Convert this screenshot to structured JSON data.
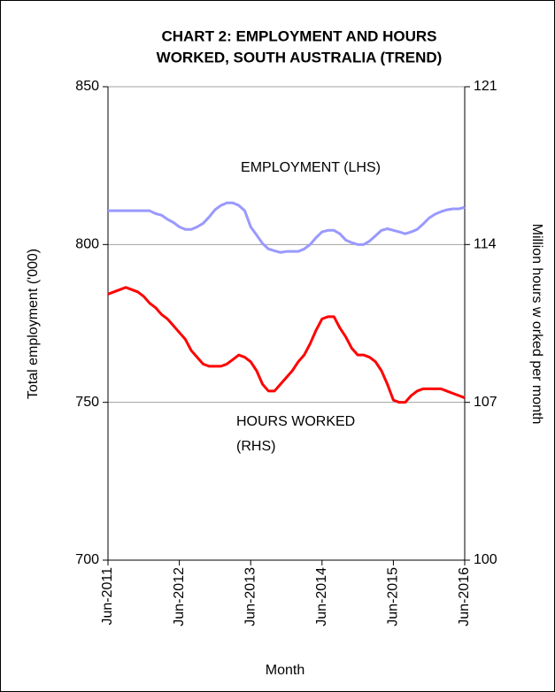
{
  "chart_data": {
    "type": "line",
    "title": [
      "CHART 2: EMPLOYMENT  AND HOURS",
      "WORKED, SOUTH AUSTRALIA (TREND)"
    ],
    "x_label": "Month",
    "y_label": "Total employment ('000)",
    "y2_label": "Million  hours w orked per month",
    "annotations": [
      "EMPLOYMENT  (LHS)",
      "HOURS WORKED",
      "(RHS)"
    ],
    "categories": [
      "Jun-2011",
      null,
      null,
      null,
      null,
      null,
      null,
      null,
      null,
      null,
      null,
      null,
      "Jun-2012",
      null,
      null,
      null,
      null,
      null,
      null,
      null,
      null,
      null,
      null,
      null,
      "Jun-2013",
      null,
      null,
      null,
      null,
      null,
      null,
      null,
      null,
      null,
      null,
      null,
      "Jun-2014",
      null,
      null,
      null,
      null,
      null,
      null,
      null,
      null,
      null,
      null,
      null,
      "Jun-2015",
      null,
      null,
      null,
      null,
      null,
      null,
      null,
      null,
      null,
      null,
      null,
      "Jun-2016"
    ],
    "series": [
      {
        "name": "EMPLOYMENT (LHS)",
        "color": "#9999ff",
        "axis": "y",
        "values": [
          810.7,
          810.7,
          810.7,
          810.7,
          810.7,
          810.7,
          810.7,
          810.7,
          809.8,
          809.3,
          808,
          807,
          805.6,
          804.8,
          804.8,
          805.6,
          806.7,
          808.7,
          811,
          812.4,
          813.2,
          813.2,
          812.4,
          810.7,
          805.6,
          803,
          800.3,
          798.6,
          798,
          797.5,
          797.8,
          797.8,
          797.8,
          798.6,
          800,
          802.2,
          804,
          804.5,
          804.5,
          803.4,
          801.4,
          800.6,
          800,
          800,
          801.1,
          802.8,
          804.5,
          805,
          804.5,
          804,
          803.4,
          804,
          804.8,
          806.5,
          808.4,
          809.6,
          810.4,
          811,
          811.3,
          811.3,
          811.8
        ]
      },
      {
        "name": "HOURS WORKED (RHS)",
        "color": "#ff0000",
        "axis": "y2",
        "values": [
          111.8,
          111.9,
          112.0,
          112.1,
          112.0,
          111.9,
          111.7,
          111.4,
          111.2,
          110.9,
          110.7,
          110.4,
          110.1,
          109.8,
          109.3,
          109.0,
          108.7,
          108.6,
          108.6,
          108.6,
          108.7,
          108.9,
          109.1,
          109.0,
          108.8,
          108.4,
          107.8,
          107.5,
          107.5,
          107.8,
          108.1,
          108.4,
          108.8,
          109.1,
          109.6,
          110.2,
          110.7,
          110.8,
          110.8,
          110.3,
          109.9,
          109.4,
          109.1,
          109.1,
          109.0,
          108.8,
          108.4,
          107.8,
          107.1,
          107.0,
          107.0,
          107.3,
          107.5,
          107.6,
          107.6,
          107.6,
          107.6,
          107.5,
          107.4,
          107.3,
          107.2
        ]
      }
    ],
    "ylim": [
      700,
      850
    ],
    "yticks": [
      700,
      750,
      800,
      850
    ],
    "y2lim": [
      100,
      121
    ],
    "y2ticks": [
      100,
      107,
      114,
      121
    ],
    "grid": true
  }
}
